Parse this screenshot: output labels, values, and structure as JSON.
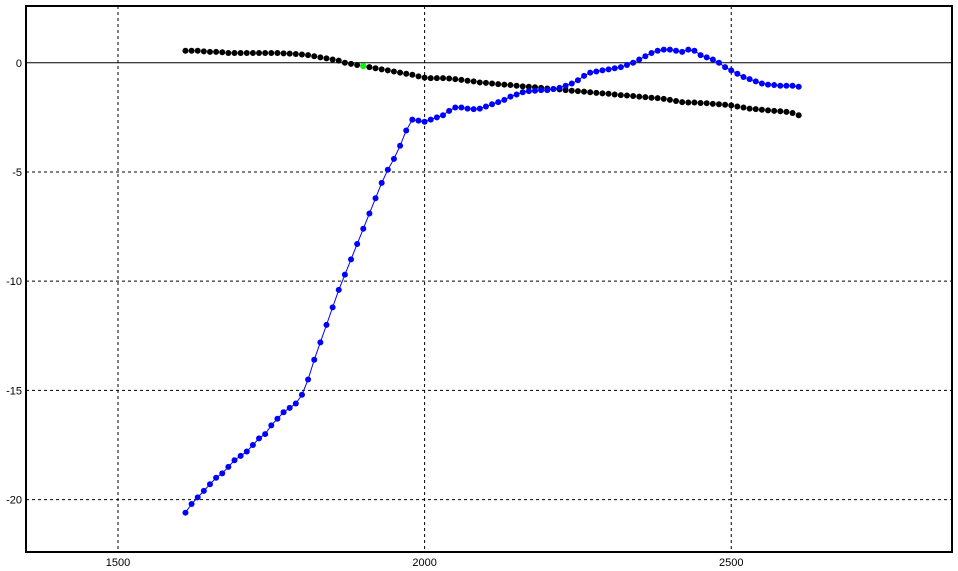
{
  "chart_data": {
    "type": "scatter",
    "title": "",
    "xlabel": "",
    "ylabel": "",
    "xlim": [
      1350,
      2860
    ],
    "ylim": [
      -22.4,
      2.6
    ],
    "grid": true,
    "zero_line": true,
    "xticks": [
      1500,
      2000,
      2500
    ],
    "yticks": [
      0,
      -5,
      -10,
      -15,
      -20
    ],
    "xtick_labels": [
      "1500",
      "2000",
      "2500"
    ],
    "ytick_labels": [
      "0",
      "-5",
      "-10",
      "-15",
      "-20"
    ],
    "series": [
      {
        "color": "#000000",
        "connected": false,
        "x": [
          1610,
          1620,
          1630,
          1640,
          1650,
          1660,
          1670,
          1680,
          1690,
          1700,
          1710,
          1720,
          1730,
          1740,
          1750,
          1760,
          1770,
          1780,
          1790,
          1800,
          1810,
          1820,
          1830,
          1840,
          1850,
          1860,
          1870,
          1880,
          1890,
          1900,
          1910,
          1920,
          1930,
          1940,
          1950,
          1960,
          1970,
          1980,
          1990,
          2000,
          2010,
          2020,
          2030,
          2040,
          2050,
          2060,
          2070,
          2080,
          2090,
          2100,
          2110,
          2120,
          2130,
          2140,
          2150,
          2160,
          2170,
          2180,
          2190,
          2200,
          2210,
          2220,
          2230,
          2240,
          2250,
          2260,
          2270,
          2280,
          2290,
          2300,
          2310,
          2320,
          2330,
          2340,
          2350,
          2360,
          2370,
          2380,
          2390,
          2400,
          2410,
          2420,
          2430,
          2440,
          2450,
          2460,
          2470,
          2480,
          2490,
          2500,
          2510,
          2520,
          2530,
          2540,
          2550,
          2560,
          2570,
          2580,
          2590,
          2600,
          2610
        ],
        "y": [
          0.55,
          0.55,
          0.55,
          0.52,
          0.5,
          0.5,
          0.48,
          0.45,
          0.45,
          0.45,
          0.45,
          0.45,
          0.45,
          0.45,
          0.45,
          0.45,
          0.43,
          0.42,
          0.4,
          0.38,
          0.35,
          0.3,
          0.25,
          0.2,
          0.15,
          0.1,
          0.0,
          -0.05,
          -0.1,
          -0.15,
          -0.2,
          -0.25,
          -0.3,
          -0.35,
          -0.4,
          -0.45,
          -0.5,
          -0.55,
          -0.62,
          -0.68,
          -0.7,
          -0.7,
          -0.7,
          -0.72,
          -0.75,
          -0.78,
          -0.82,
          -0.85,
          -0.9,
          -0.92,
          -0.95,
          -0.98,
          -1.0,
          -1.02,
          -1.05,
          -1.08,
          -1.1,
          -1.12,
          -1.15,
          -1.18,
          -1.2,
          -1.22,
          -1.25,
          -1.28,
          -1.3,
          -1.32,
          -1.35,
          -1.38,
          -1.4,
          -1.42,
          -1.45,
          -1.48,
          -1.5,
          -1.52,
          -1.55,
          -1.57,
          -1.6,
          -1.62,
          -1.65,
          -1.7,
          -1.75,
          -1.8,
          -1.82,
          -1.82,
          -1.84,
          -1.85,
          -1.88,
          -1.9,
          -1.92,
          -1.95,
          -2.0,
          -2.05,
          -2.1,
          -2.12,
          -2.15,
          -2.18,
          -2.2,
          -2.22,
          -2.25,
          -2.3,
          -2.4
        ]
      },
      {
        "color": "#0000ff",
        "connected": true,
        "x": [
          1610,
          1620,
          1630,
          1640,
          1650,
          1660,
          1670,
          1680,
          1690,
          1700,
          1710,
          1720,
          1730,
          1740,
          1750,
          1760,
          1770,
          1780,
          1790,
          1800,
          1810,
          1820,
          1830,
          1840,
          1850,
          1860,
          1870,
          1880,
          1890,
          1900,
          1910,
          1920,
          1930,
          1940,
          1950,
          1960,
          1970,
          1980,
          1990,
          2000,
          2010,
          2020,
          2030,
          2040,
          2050,
          2060,
          2070,
          2080,
          2090,
          2100,
          2110,
          2120,
          2130,
          2140,
          2150,
          2160,
          2170,
          2180,
          2190,
          2200,
          2210,
          2220,
          2230,
          2240,
          2250,
          2260,
          2270,
          2280,
          2290,
          2300,
          2310,
          2320,
          2330,
          2340,
          2350,
          2360,
          2370,
          2380,
          2390,
          2400,
          2410,
          2420,
          2430,
          2440,
          2450,
          2460,
          2470,
          2480,
          2490,
          2500,
          2510,
          2520,
          2530,
          2540,
          2550,
          2560,
          2570,
          2580,
          2590,
          2600,
          2610
        ],
        "y": [
          -20.6,
          -20.2,
          -19.9,
          -19.6,
          -19.3,
          -19.0,
          -18.8,
          -18.5,
          -18.2,
          -18.0,
          -17.8,
          -17.5,
          -17.2,
          -17.0,
          -16.6,
          -16.3,
          -16.0,
          -15.8,
          -15.6,
          -15.2,
          -14.5,
          -13.6,
          -12.8,
          -12.0,
          -11.2,
          -10.4,
          -9.7,
          -9.0,
          -8.3,
          -7.6,
          -6.9,
          -6.2,
          -5.5,
          -4.9,
          -4.4,
          -3.8,
          -3.1,
          -2.6,
          -2.65,
          -2.7,
          -2.6,
          -2.5,
          -2.4,
          -2.2,
          -2.05,
          -2.05,
          -2.1,
          -2.12,
          -2.1,
          -2.0,
          -1.9,
          -1.8,
          -1.7,
          -1.55,
          -1.45,
          -1.35,
          -1.3,
          -1.28,
          -1.25,
          -1.25,
          -1.2,
          -1.15,
          -1.05,
          -0.95,
          -0.8,
          -0.6,
          -0.45,
          -0.4,
          -0.35,
          -0.3,
          -0.25,
          -0.2,
          -0.1,
          0.0,
          0.15,
          0.3,
          0.45,
          0.55,
          0.6,
          0.6,
          0.55,
          0.5,
          0.6,
          0.55,
          0.35,
          0.25,
          0.15,
          0.0,
          -0.2,
          -0.35,
          -0.5,
          -0.65,
          -0.75,
          -0.85,
          -0.95,
          -1.0,
          -1.02,
          -1.05,
          -1.05,
          -1.05,
          -1.1
        ]
      }
    ],
    "highlight_points": [
      {
        "x": 1900,
        "y": -0.15,
        "color": "#00ff00"
      }
    ]
  }
}
